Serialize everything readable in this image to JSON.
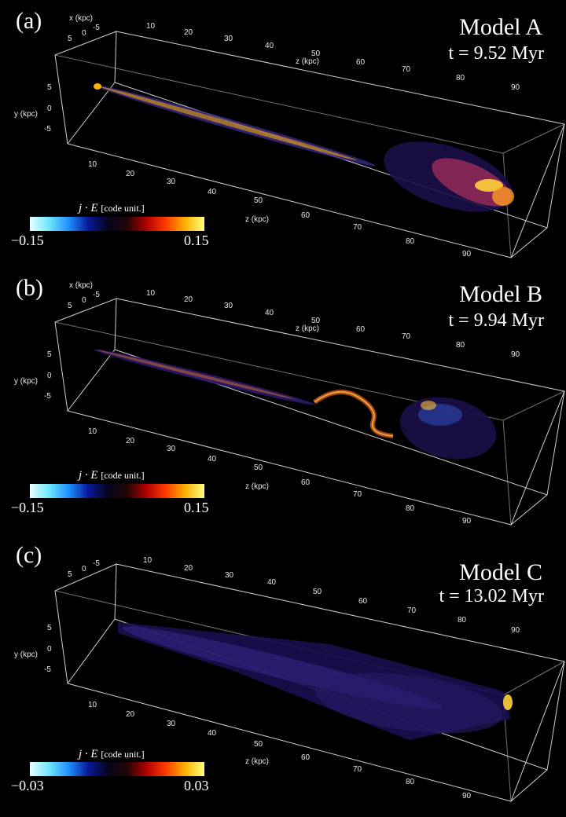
{
  "panels": [
    {
      "label": "(a)",
      "model": "Model A",
      "time": "t = 9.52 Myr",
      "colorbar": {
        "title": "j · E",
        "unit": "[code unit.]",
        "min": "−0.15",
        "max": "0.15"
      },
      "axes": {
        "x_label": "x (kpc)",
        "x_ticks": [
          "5",
          "0",
          "-5"
        ],
        "y_label": "y (kpc)",
        "y_ticks": [
          "5",
          "0",
          "-5"
        ],
        "z_label": "z (kpc)",
        "z_top_ticks": [
          "10",
          "20",
          "30",
          "40",
          "50",
          "60",
          "70",
          "80",
          "90"
        ],
        "z_bottom_ticks": [
          "10",
          "20",
          "30",
          "40",
          "50",
          "60",
          "70",
          "80",
          "90"
        ]
      }
    },
    {
      "label": "(b)",
      "model": "Model B",
      "time": "t = 9.94 Myr",
      "colorbar": {
        "title": "j · E",
        "unit": "[code unit.]",
        "min": "−0.15",
        "max": "0.15"
      },
      "axes": {
        "x_label": "x (kpc)",
        "x_ticks": [
          "5",
          "0",
          "-5"
        ],
        "y_label": "y (kpc)",
        "y_ticks": [
          "5",
          "0",
          "-5"
        ],
        "z_label": "z (kpc)",
        "z_top_ticks": [
          "10",
          "20",
          "30",
          "40",
          "50",
          "60",
          "70",
          "80",
          "90"
        ],
        "z_bottom_ticks": [
          "10",
          "20",
          "30",
          "40",
          "50",
          "60",
          "70",
          "80",
          "90"
        ]
      }
    },
    {
      "label": "(c)",
      "model": "Model C",
      "time": "t = 13.02 Myr",
      "colorbar": {
        "title": "j · E",
        "unit": "[code unit.]",
        "min": "−0.03",
        "max": "0.03"
      },
      "axes": {
        "x_label": "",
        "x_ticks": [
          "5",
          "0",
          "-5"
        ],
        "y_label": "y (kpc)",
        "y_ticks": [
          "5",
          "0",
          "-5"
        ],
        "z_label": "z (kpc)",
        "z_top_ticks": [
          "10",
          "20",
          "30",
          "40",
          "50",
          "60",
          "70",
          "80",
          "90"
        ],
        "z_bottom_ticks": [
          "10",
          "20",
          "30",
          "40",
          "50",
          "60",
          "70",
          "80",
          "90"
        ]
      }
    }
  ],
  "colors": {
    "background": "#000000",
    "box": "#d0d0d0",
    "cmap": [
      "#e8ffff",
      "#6ee6ff",
      "#1e90ff",
      "#0a1a9a",
      "#050520",
      "#200505",
      "#b00000",
      "#ff3a00",
      "#ffb000",
      "#ffff80"
    ]
  }
}
